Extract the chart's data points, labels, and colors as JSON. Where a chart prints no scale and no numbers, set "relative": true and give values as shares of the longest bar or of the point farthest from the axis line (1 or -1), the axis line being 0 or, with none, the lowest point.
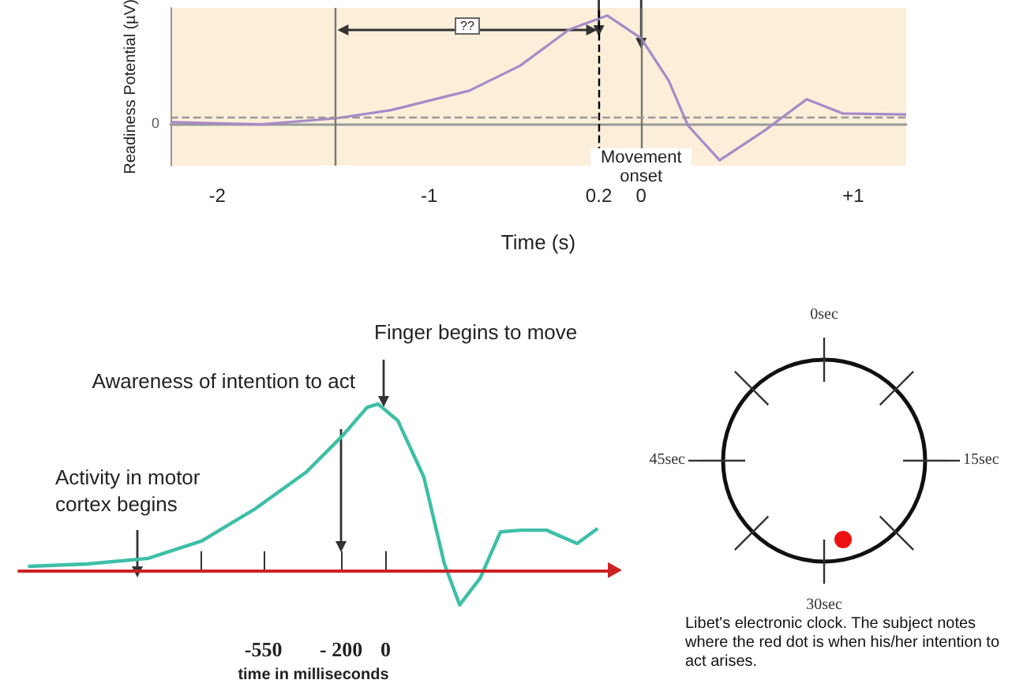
{
  "chart_data": [
    {
      "type": "line",
      "xlabel": "Time (s)",
      "ylabel": "Readiness Potential (µV)",
      "relative": true,
      "marker": "none",
      "color": "#a58bc9",
      "x": [
        -2.22,
        -1.79,
        -1.44,
        -1.18,
        -0.81,
        -0.57,
        -0.34,
        -0.16,
        0.0,
        0.13,
        0.22,
        0.37,
        0.58,
        0.78,
        0.95,
        1.25
      ],
      "values": [
        0.02,
        0,
        0.055,
        0.13,
        0.31,
        0.54,
        0.87,
        1.0,
        0.79,
        0.4,
        -0.01,
        -0.33,
        -0.06,
        0.23,
        0.1,
        0.09
      ],
      "xlim": [
        -2.22,
        1.25
      ],
      "xticks": [
        -2,
        -1,
        {
          "value": -0.2,
          "label": "0.2"
        },
        0,
        {
          "value": 1,
          "label": "+1"
        }
      ],
      "ref_lines": [
        {
          "axis": "x",
          "value": -1.44,
          "color": "#777777"
        },
        {
          "axis": "x",
          "value": -0.2,
          "color": "#000000",
          "line_style": "dashed"
        },
        {
          "axis": "x",
          "value": 0,
          "color": "#777777"
        },
        {
          "axis": "y",
          "value": 0.064,
          "color": "#999999",
          "line_style": "dashed"
        }
      ],
      "annotations": [
        "??",
        "Movement onset",
        "0"
      ]
    },
    {
      "type": "line",
      "xlabel": "time in milliseconds",
      "relative": true,
      "marker": "none",
      "color": "#3dbfa6",
      "x": [
        -1609,
        -1345,
        -1069,
        -828,
        -586,
        -357,
        -193,
        -83,
        -34,
        55,
        172,
        264,
        333,
        425,
        517,
        609,
        724,
        862,
        954
      ],
      "values": [
        0.022,
        0.036,
        0.07,
        0.175,
        0.37,
        0.59,
        0.81,
        0.98,
        1.0,
        0.9,
        0.56,
        0.04,
        -0.21,
        -0.05,
        0.23,
        0.24,
        0.24,
        0.16,
        0.25
      ],
      "xlim": [
        -1650,
        1000
      ],
      "xticks": [
        {
          "value": -828,
          "label": null
        },
        -550,
        {
          "value": -200,
          "label": "- 200"
        },
        0
      ],
      "ref_lines": [
        {
          "axis": "y",
          "value": 0,
          "color": "#cc2222"
        }
      ],
      "annotations": [
        "Activity in motor cortex begins",
        "Awareness of intention to act",
        "Finger begins to move"
      ]
    },
    {
      "type": "other",
      "annotations": [
        "0sec",
        "15sec",
        "30sec",
        "45sec",
        "Libet's electronic clock. The subject notes where the red dot is when his/her intention to act arises."
      ]
    }
  ]
}
